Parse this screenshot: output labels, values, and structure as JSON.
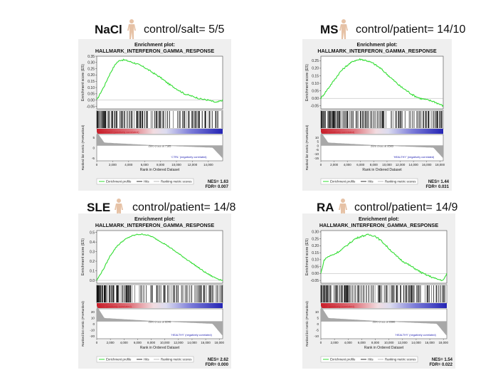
{
  "panels": [
    {
      "id": "nacl",
      "name": "NaCl",
      "ratio": "control/salt= 5/5",
      "title1": "Enrichment plot:",
      "title2": "HALLMARK_INTERFERON_GAMMA_RESPONSE",
      "ylabel_es": "Enrichment score (ES)",
      "ylabel_rank": "Ranked list metric (PreRanked)",
      "xlabel": "Rank in Ordered Dataset",
      "pos_label": "'HIGHNaCl' (positively correlated)",
      "neg_label": "'CTRL' (negatively correlated)",
      "zero_cross": "Zero cross at 7185",
      "legend_profile": "Enrichment profile",
      "legend_hits": "Hits",
      "legend_metric": "Ranking metric scores",
      "nes": "NES= 1.63",
      "fdr": "FDR= 0.007",
      "es_ticks": [
        "0.35",
        "0.30",
        "0.25",
        "0.20",
        "0.15",
        "0.10",
        "0.05",
        "0.00",
        "-0.05"
      ],
      "rank_ticks": [
        "5",
        "0",
        "-5"
      ],
      "x_ticks": [
        "0",
        "2,000",
        "4,000",
        "6,000",
        "8,000",
        "10,000",
        "12,000",
        "14,000"
      ]
    },
    {
      "id": "ms",
      "name": "MS",
      "ratio": "control/patient= 14/10",
      "title1": "Enrichment plot:",
      "title2": "HALLMARK_INTERFERON_GAMMA_RESPONSE",
      "ylabel_es": "Enrichment score (ES)",
      "ylabel_rank": "Ranked list metric (PreRanked)",
      "xlabel": "Rank in Ordered Dataset",
      "pos_label": "'MS' (positively correlated)",
      "neg_label": "'HEALTHY' (negatively correlated)",
      "zero_cross": "Zero cross at 8583",
      "legend_profile": "Enrichment profile",
      "legend_hits": "Hits",
      "legend_metric": "Ranking metric scores",
      "nes": "NES= 1.44",
      "fdr": "FDR= 0.031",
      "es_ticks": [
        "0.25",
        "0.20",
        "0.15",
        "0.10",
        "0.05",
        "0.00",
        "-0.05"
      ],
      "rank_ticks": [
        "10",
        "5",
        "0",
        "-5",
        "-10",
        "-15"
      ],
      "x_ticks": [
        "0",
        "2,000",
        "4,000",
        "6,000",
        "8,000",
        "10,000",
        "12,000",
        "14,000",
        "16,000",
        "18,000"
      ]
    },
    {
      "id": "sle",
      "name": "SLE",
      "ratio": "control/patient= 14/8",
      "title1": "Enrichment plot:",
      "title2": "HALLMARK_INTERFERON_GAMMA_RESPONSE",
      "ylabel_es": "Enrichment score (ES)",
      "ylabel_rank": "Ranked list metric (PreRanked)",
      "xlabel": "Rank in Ordered Dataset",
      "pos_label": "'SLE' (positively correlated)",
      "neg_label": "'HEALTHY' (negatively correlated)",
      "zero_cross": "Zero cross at 8246",
      "legend_profile": "Enrichment profile",
      "legend_hits": "Hits",
      "legend_metric": "Ranking metric scores",
      "nes": "NES= 2.62",
      "fdr": "FDR= 0.000",
      "es_ticks": [
        "0.5",
        "0.4",
        "0.3",
        "0.2",
        "0.1",
        "0.0"
      ],
      "rank_ticks": [
        "20",
        "10",
        "0",
        "-10",
        "-20"
      ],
      "x_ticks": [
        "0",
        "2,000",
        "4,000",
        "6,000",
        "8,000",
        "10,000",
        "12,000",
        "14,000",
        "16,000",
        "18,000"
      ]
    },
    {
      "id": "ra",
      "name": "RA",
      "ratio": "control/patient= 14/9",
      "title1": "Enrichment plot:",
      "title2": "HALLMARK_INTERFERON_GAMMA_RESPONSE",
      "ylabel_es": "Enrichment score (ES)",
      "ylabel_rank": "Ranked list metric (PreRanked)",
      "xlabel": "Rank in Ordered Dataset",
      "pos_label": "'RA' (positively correlated)",
      "neg_label": "'HEALTHY' (negatively correlated)",
      "zero_cross": "Zero cross at 8386",
      "legend_profile": "Enrichment profile",
      "legend_hits": "Hits",
      "legend_metric": "Ranking metric scores",
      "nes": "NES= 1.54",
      "fdr": "FDR= 0.022",
      "es_ticks": [
        "0.30",
        "0.25",
        "0.20",
        "0.15",
        "0.10",
        "0.05",
        "0.00",
        "-0.05"
      ],
      "rank_ticks": [
        "10",
        "5",
        "0",
        "-5",
        "-10"
      ],
      "x_ticks": [
        "0",
        "2,000",
        "4,000",
        "6,000",
        "8,000",
        "10,000",
        "12,000",
        "14,000",
        "16,000",
        "18,000"
      ]
    }
  ],
  "colors": {
    "profile": "#33dd33",
    "heat_red": "#c81e2a",
    "heat_blue": "#2424b4",
    "metric_fill": "#a8a8a8",
    "panel_bg": "#efefef"
  },
  "chart_data": [
    {
      "type": "line",
      "title": "HALLMARK_INTERFERON_GAMMA_RESPONSE",
      "xlabel": "Rank in Ordered Dataset",
      "ylabel": "Enrichment score (ES)",
      "xlim": [
        0,
        15800
      ],
      "ylim": [
        -0.07,
        0.35
      ],
      "x": [
        0,
        500,
        1000,
        1500,
        2000,
        2500,
        3000,
        3500,
        4000,
        5000,
        6000,
        7000,
        8000,
        9000,
        10000,
        11000,
        12000,
        13000,
        14000,
        15000,
        15800
      ],
      "values": [
        0.0,
        0.06,
        0.12,
        0.19,
        0.25,
        0.3,
        0.32,
        0.32,
        0.31,
        0.29,
        0.26,
        0.22,
        0.18,
        0.13,
        0.09,
        0.05,
        0.03,
        0.01,
        0.0,
        -0.02,
        0.0
      ]
    },
    {
      "type": "line",
      "title": "HALLMARK_INTERFERON_GAMMA_RESPONSE",
      "xlabel": "Rank in Ordered Dataset",
      "ylabel": "Enrichment score (ES)",
      "xlim": [
        0,
        18500
      ],
      "ylim": [
        -0.07,
        0.28
      ],
      "x": [
        0,
        1000,
        2000,
        3000,
        4000,
        5000,
        6000,
        7000,
        8000,
        9000,
        10000,
        11000,
        12000,
        13000,
        14000,
        15000,
        16000,
        17000,
        18000,
        18500
      ],
      "values": [
        0.0,
        0.06,
        0.12,
        0.18,
        0.22,
        0.25,
        0.26,
        0.25,
        0.23,
        0.2,
        0.16,
        0.12,
        0.08,
        0.05,
        0.02,
        0.0,
        -0.01,
        -0.02,
        -0.04,
        -0.05
      ]
    },
    {
      "type": "line",
      "title": "HALLMARK_INTERFERON_GAMMA_RESPONSE",
      "xlabel": "Rank in Ordered Dataset",
      "ylabel": "Enrichment score (ES)",
      "xlim": [
        0,
        18500
      ],
      "ylim": [
        -0.03,
        0.52
      ],
      "x": [
        0,
        1000,
        2000,
        3000,
        4000,
        5000,
        6000,
        7000,
        8000,
        9000,
        10000,
        11000,
        12000,
        13000,
        14000,
        15000,
        16000,
        17000,
        18000,
        18500
      ],
      "values": [
        0.0,
        0.12,
        0.26,
        0.36,
        0.42,
        0.46,
        0.48,
        0.48,
        0.46,
        0.42,
        0.38,
        0.33,
        0.28,
        0.23,
        0.18,
        0.13,
        0.08,
        0.04,
        0.01,
        0.0
      ]
    },
    {
      "type": "line",
      "title": "HALLMARK_INTERFERON_GAMMA_RESPONSE",
      "xlabel": "Rank in Ordered Dataset",
      "ylabel": "Enrichment score (ES)",
      "xlim": [
        0,
        18500
      ],
      "ylim": [
        -0.07,
        0.31
      ],
      "x": [
        0,
        500,
        1000,
        2000,
        3000,
        4000,
        5000,
        6000,
        7000,
        8000,
        9000,
        10000,
        11000,
        12000,
        13000,
        14000,
        15000,
        16000,
        17000,
        18000,
        18500
      ],
      "values": [
        0.0,
        0.1,
        0.12,
        0.14,
        0.17,
        0.21,
        0.25,
        0.27,
        0.28,
        0.27,
        0.23,
        0.18,
        0.13,
        0.09,
        0.06,
        0.03,
        0.0,
        -0.02,
        -0.04,
        -0.05,
        0.0
      ]
    }
  ]
}
